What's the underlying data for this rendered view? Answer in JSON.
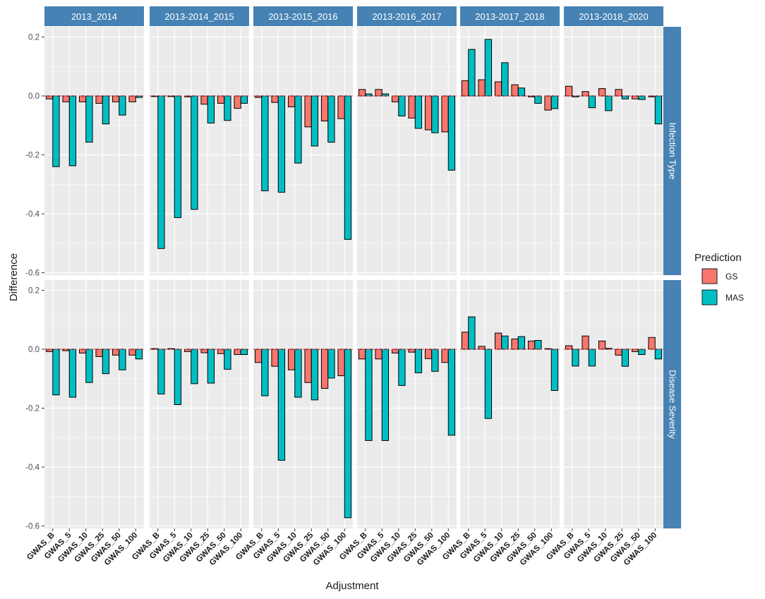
{
  "chart_data": {
    "type": "bar",
    "facet_columns": [
      "2013_2014",
      "2013-2014_2015",
      "2013-2015_2016",
      "2013-2016_2017",
      "2013-2017_2018",
      "2013-2018_2020"
    ],
    "facet_rows": [
      "Infection Type",
      "Disease Severity"
    ],
    "categories": [
      "GWAS_B",
      "GWAS_5",
      "GWAS_10",
      "GWAS_25",
      "GWAS_50",
      "GWAS_100"
    ],
    "xlabel": "Adjustment",
    "ylabel": "Difference",
    "ylim": [
      -0.6,
      0.22
    ],
    "yticks": [
      0.2,
      0.0,
      -0.2,
      -0.4,
      -0.6
    ],
    "ytick_labels": [
      "0.2",
      "0.0",
      "-0.2",
      "-0.4",
      "-0.6"
    ],
    "reference_line": 0,
    "legend": {
      "title": "Prediction",
      "entries": [
        {
          "name": "GS",
          "color": "#F8766D"
        },
        {
          "name": "MAS",
          "color": "#00BFC4"
        }
      ]
    },
    "panels": [
      {
        "row": "Infection Type",
        "column": "2013_2014",
        "GS": [
          -0.01,
          -0.02,
          -0.02,
          -0.025,
          -0.02,
          -0.02
        ],
        "MAS": [
          -0.24,
          -0.237,
          -0.157,
          -0.095,
          -0.065,
          -0.005
        ]
      },
      {
        "row": "Infection Type",
        "column": "2013-2014_2015",
        "GS": [
          -0.002,
          -0.002,
          -0.003,
          -0.028,
          -0.025,
          -0.042
        ],
        "MAS": [
          -0.518,
          -0.413,
          -0.385,
          -0.092,
          -0.083,
          -0.025
        ]
      },
      {
        "row": "Infection Type",
        "column": "2013-2015_2016",
        "GS": [
          -0.005,
          -0.022,
          -0.037,
          -0.105,
          -0.085,
          -0.077
        ],
        "MAS": [
          -0.322,
          -0.327,
          -0.228,
          -0.17,
          -0.157,
          -0.487
        ]
      },
      {
        "row": "Infection Type",
        "column": "2013-2016_2017",
        "GS": [
          0.022,
          0.022,
          -0.02,
          -0.075,
          -0.115,
          -0.122
        ],
        "MAS": [
          0.007,
          0.007,
          -0.068,
          -0.11,
          -0.125,
          -0.252
        ]
      },
      {
        "row": "Infection Type",
        "column": "2013-2017_2018",
        "GS": [
          0.052,
          0.055,
          0.048,
          0.038,
          -0.003,
          -0.048
        ],
        "MAS": [
          0.158,
          0.192,
          0.113,
          0.027,
          -0.025,
          -0.043
        ]
      },
      {
        "row": "Infection Type",
        "column": "2013-2018_2020",
        "GS": [
          0.033,
          0.015,
          0.025,
          0.022,
          -0.01,
          -0.003
        ],
        "MAS": [
          -0.003,
          -0.04,
          -0.05,
          -0.01,
          -0.012,
          -0.095
        ]
      },
      {
        "row": "Disease Severity",
        "column": "2013_2014",
        "GS": [
          -0.008,
          -0.005,
          -0.013,
          -0.025,
          -0.02,
          -0.02
        ],
        "MAS": [
          -0.155,
          -0.163,
          -0.113,
          -0.083,
          -0.07,
          -0.033
        ]
      },
      {
        "row": "Disease Severity",
        "column": "2013-2014_2015",
        "GS": [
          0.002,
          0.002,
          -0.008,
          -0.012,
          -0.015,
          -0.018
        ],
        "MAS": [
          -0.152,
          -0.188,
          -0.117,
          -0.115,
          -0.068,
          -0.018
        ]
      },
      {
        "row": "Disease Severity",
        "column": "2013-2015_2016",
        "GS": [
          -0.045,
          -0.058,
          -0.07,
          -0.113,
          -0.133,
          -0.09
        ],
        "MAS": [
          -0.158,
          -0.377,
          -0.163,
          -0.172,
          -0.098,
          -0.572
        ]
      },
      {
        "row": "Disease Severity",
        "column": "2013-2016_2017",
        "GS": [
          -0.033,
          -0.033,
          -0.013,
          -0.01,
          -0.032,
          -0.045
        ],
        "MAS": [
          -0.31,
          -0.31,
          -0.123,
          -0.08,
          -0.075,
          -0.292
        ]
      },
      {
        "row": "Disease Severity",
        "column": "2013-2017_2018",
        "GS": [
          0.058,
          0.01,
          0.055,
          0.035,
          0.028,
          0.002
        ],
        "MAS": [
          0.11,
          -0.235,
          0.045,
          0.043,
          0.03,
          -0.14
        ]
      },
      {
        "row": "Disease Severity",
        "column": "2013-2018_2020",
        "GS": [
          0.012,
          0.045,
          0.028,
          -0.02,
          -0.008,
          0.04
        ],
        "MAS": [
          -0.057,
          -0.057,
          0.003,
          -0.058,
          -0.018,
          -0.033
        ]
      }
    ]
  }
}
